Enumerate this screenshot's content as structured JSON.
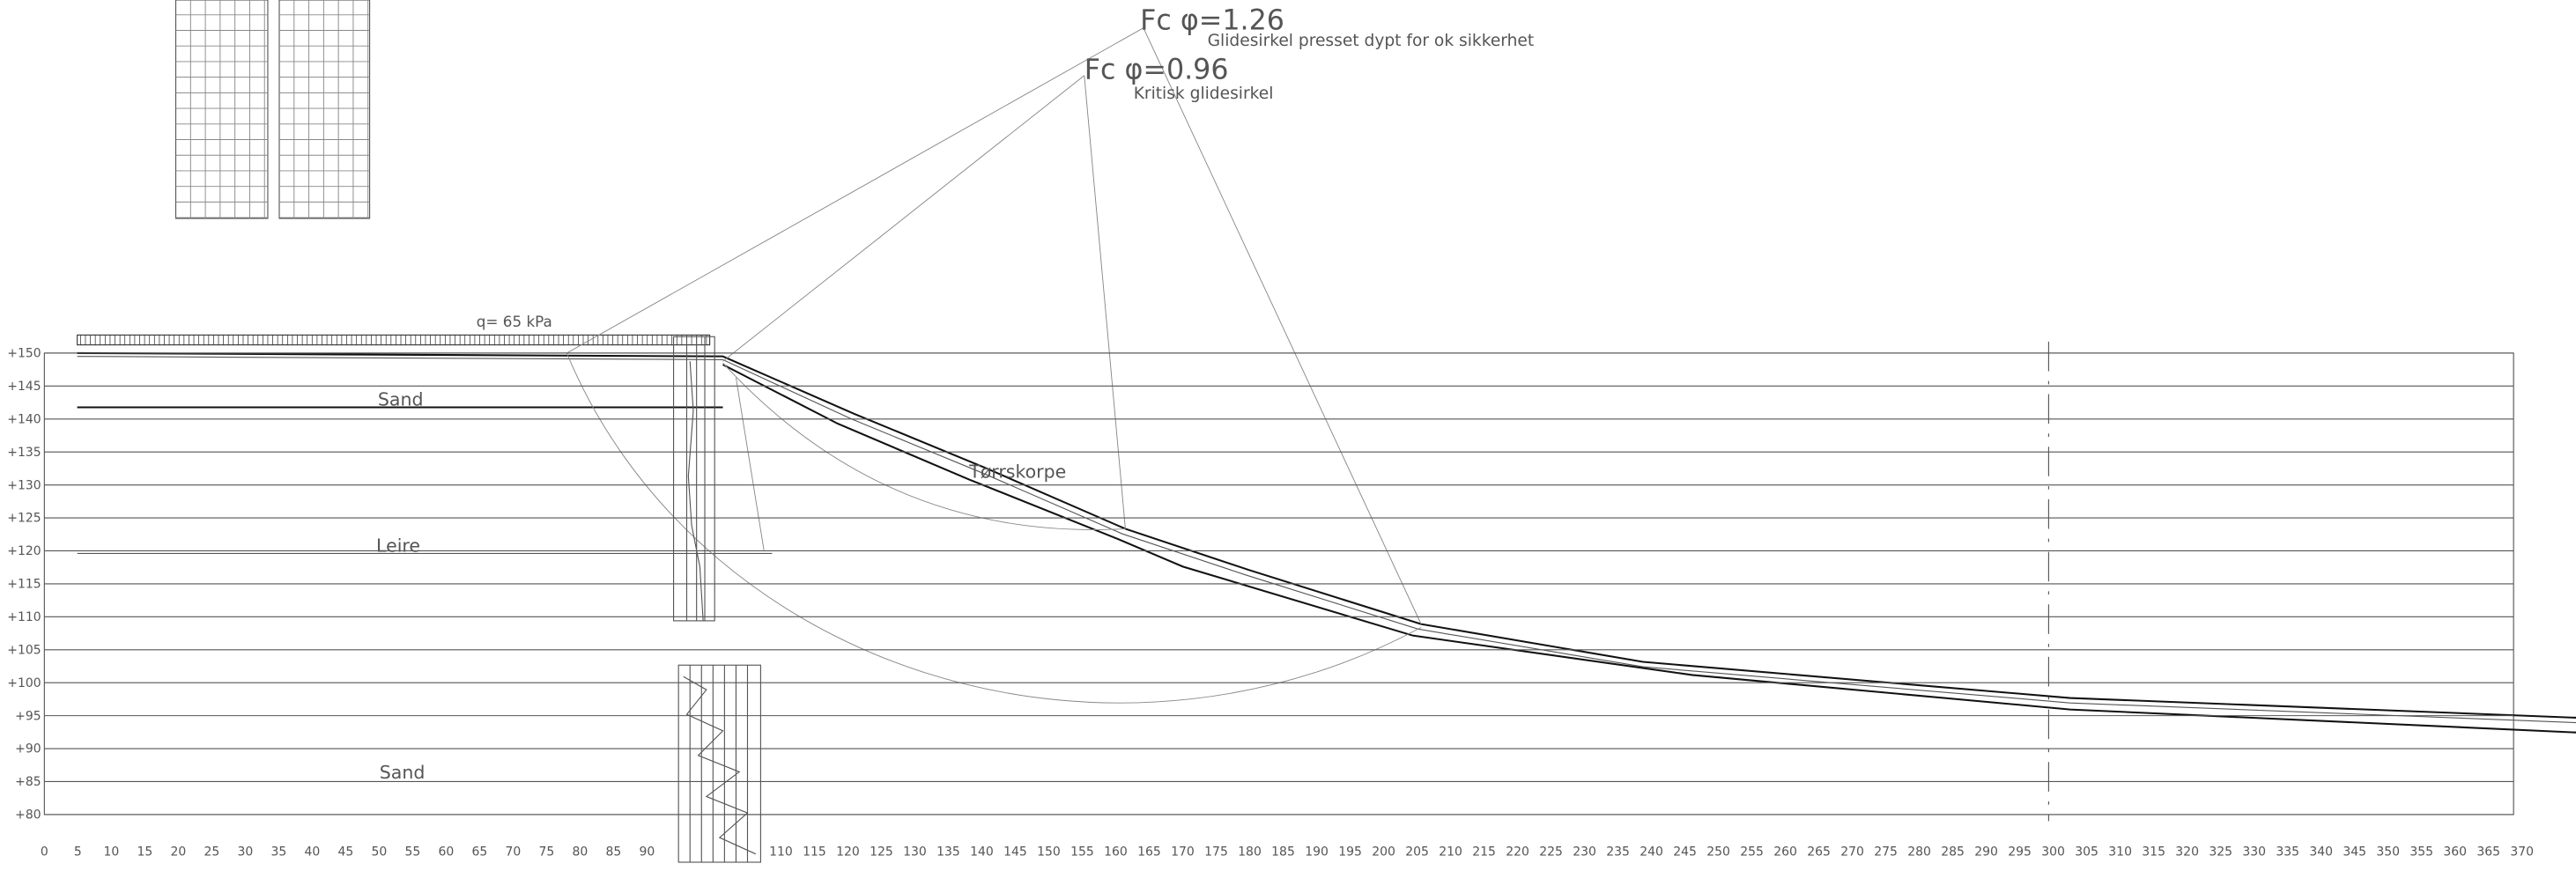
{
  "annotations": {
    "fc_high": "Fc φ=1.26",
    "fc_high_note": "Glidesirkel presset dypt for ok sikkerhet",
    "fc_low": "Fc φ=0.96",
    "fc_low_note": "Kritisk glidesirkel",
    "load": "q= 65 kPa"
  },
  "layers": [
    "Sand",
    "Leire",
    "Tørrskorpe",
    "Sand"
  ],
  "elevation_labels": [
    "+150",
    "+145",
    "+140",
    "+135",
    "+130",
    "+125",
    "+120",
    "+115",
    "+110",
    "+105",
    "+100",
    "+95",
    "+90",
    "+85",
    "+80"
  ],
  "distance_labels": [
    "0",
    "5",
    "10",
    "15",
    "20",
    "25",
    "30",
    "35",
    "40",
    "45",
    "50",
    "55",
    "60",
    "65",
    "70",
    "75",
    "80",
    "85",
    "90",
    "110",
    "115",
    "120",
    "125",
    "130",
    "135",
    "140",
    "145",
    "150",
    "155",
    "160",
    "165",
    "170",
    "175",
    "180",
    "185",
    "190",
    "195",
    "200",
    "205",
    "210",
    "215",
    "220",
    "225",
    "230",
    "235",
    "240",
    "245",
    "250",
    "255",
    "260",
    "265",
    "270",
    "275",
    "280",
    "285",
    "290",
    "295",
    "300",
    "305",
    "310",
    "315",
    "320",
    "325",
    "330",
    "335",
    "340",
    "345",
    "350",
    "355",
    "360",
    "365",
    "370"
  ]
}
